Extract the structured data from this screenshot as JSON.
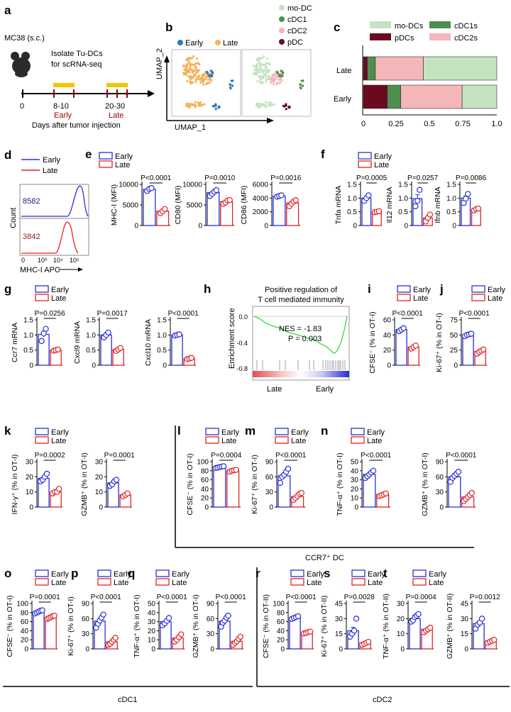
{
  "panels": {
    "a": {
      "letter": "a",
      "model": "MC38 (s.c.)",
      "isolate_line1": "Isolate Tu-DCs",
      "isolate_line2": "for scRNA-seq",
      "tick0": "0",
      "early_range": "8-10",
      "early_label": "Early",
      "late_range": "20-30",
      "late_label": "Late",
      "axis_label": "Days after tumor injection"
    },
    "b": {
      "letter": "b",
      "legend1": [
        "Early",
        "Late"
      ],
      "legend2": [
        "mo-DC",
        "cDC1",
        "cDC2",
        "pDC"
      ],
      "xlabel": "UMAP_1",
      "ylabel": "UMAP_2"
    },
    "c": {
      "letter": "c",
      "legend": [
        "mo-DCs",
        "cDC1s",
        "pDCs",
        "cDC2s"
      ],
      "ticks": [
        "0",
        "0.25",
        "0.5",
        "0.75",
        "1.0"
      ]
    },
    "d": {
      "letter": "d",
      "legend": [
        "Early",
        "Late"
      ],
      "mfi_early": "8582",
      "mfi_late": "3842",
      "ylabel": "Count",
      "xlabel": "MHC-I APC",
      "ticks": [
        "0",
        "10³",
        "10⁴",
        "10⁵"
      ]
    },
    "h": {
      "letter": "h",
      "title1": "Positive regulation of",
      "title2": "T cell mediated  immunity",
      "ylabel": "Enrichment score",
      "nes": "NES = -1.83",
      "p": "P = 0.003",
      "yticks": [
        "0.0",
        "-0.4",
        "-0.8"
      ],
      "x_late": "Late",
      "x_early": "Early"
    },
    "group_labels": {
      "ccr7": "CCR7⁺ DC",
      "cdc1": "cDC1",
      "cdc2": "cDC2"
    }
  },
  "colors": {
    "early": "#2a2fd6",
    "late": "#e02424",
    "modc": "#c5e3c0",
    "cdc1": "#4e8e4e",
    "pdc": "#6b0a1e",
    "cdc2": "#f4b6b8",
    "umap_early": "#2c7bb6",
    "umap_late": "#f5b35c",
    "gsea_line": "#33dd33"
  },
  "chart_data": [
    {
      "panel": "c",
      "type": "bar",
      "orientation": "horizontal-stacked",
      "categories": [
        "Late",
        "Early"
      ],
      "series": [
        {
          "name": "pDCs",
          "values": [
            0.03,
            0.18
          ]
        },
        {
          "name": "cDC1s",
          "values": [
            0.06,
            0.1
          ]
        },
        {
          "name": "cDC2s",
          "values": [
            0.36,
            0.46
          ]
        },
        {
          "name": "mo-DCs",
          "values": [
            0.55,
            0.26
          ]
        }
      ],
      "xlim": [
        0,
        1.0
      ]
    },
    {
      "panel": "e",
      "type": "bar",
      "ylabel": "MHC-I (MFI)",
      "yticks": [
        "0",
        "5000",
        "10000"
      ],
      "ylim": [
        0,
        10000
      ],
      "p": "P<0.0001",
      "early": 8800,
      "late": 3500,
      "early_pts": [
        8400,
        8900,
        9100
      ],
      "late_pts": [
        3000,
        3500,
        4000
      ]
    },
    {
      "panel": "e",
      "type": "bar",
      "ylabel": "CD80 (MFI)",
      "yticks": [
        "0",
        "5000",
        "10000"
      ],
      "ylim": [
        0,
        10000
      ],
      "p": "P=0.0010",
      "early": 8000,
      "late": 5800,
      "early_pts": [
        7200,
        7700,
        8200,
        8600
      ],
      "late_pts": [
        5300,
        5600,
        6100,
        6200
      ]
    },
    {
      "panel": "e",
      "type": "bar",
      "ylabel": "CD86 (MFI)",
      "yticks": [
        "0",
        "2000",
        "4000",
        "6000"
      ],
      "ylim": [
        0,
        6000
      ],
      "p": "P=0.0016",
      "early": 4300,
      "late": 3300,
      "early_pts": [
        4200,
        4300,
        4400
      ],
      "late_pts": [
        2800,
        3200,
        3500,
        3700
      ]
    },
    {
      "panel": "f",
      "type": "bar",
      "ylabel": "Tnfa mRNA",
      "yticks": [
        "0",
        "0.5",
        "1.0",
        "1.5"
      ],
      "ylim": [
        0,
        1.5
      ],
      "p": "P=0.0005",
      "early": 1.0,
      "late": 0.5,
      "early_pts": [
        0.9,
        1.0,
        1.1
      ],
      "late_pts": [
        0.48,
        0.5,
        0.52
      ]
    },
    {
      "panel": "f",
      "type": "bar",
      "ylabel": "Il12 mRNA",
      "yticks": [
        "0",
        "0.5",
        "1.0",
        "1.5"
      ],
      "ylim": [
        0,
        1.5
      ],
      "p": "P=0.0257",
      "early": 0.98,
      "late": 0.28,
      "early_pts": [
        0.7,
        0.9,
        1.3
      ],
      "late_pts": [
        0.15,
        0.28,
        0.4
      ]
    },
    {
      "panel": "f",
      "type": "bar",
      "ylabel": "Ifnb mRNA",
      "yticks": [
        "0",
        "0.5",
        "1.0",
        "1.5"
      ],
      "ylim": [
        0,
        1.5
      ],
      "p": "P=0.0086",
      "early": 1.0,
      "late": 0.58,
      "early_pts": [
        0.82,
        0.98,
        1.15
      ],
      "late_pts": [
        0.55,
        0.6,
        0.62
      ]
    },
    {
      "panel": "g",
      "type": "bar",
      "ylabel": "Ccr7 mRNA",
      "yticks": [
        "0",
        "0.5",
        "1.0",
        "1.5"
      ],
      "ylim": [
        0,
        1.5
      ],
      "p": "P=0.0256",
      "early": 1.02,
      "late": 0.5,
      "early_pts": [
        0.8,
        1.05,
        1.2
      ],
      "late_pts": [
        0.48,
        0.5,
        0.52
      ]
    },
    {
      "panel": "g",
      "type": "bar",
      "ylabel": "Cxcl9 mRNA",
      "yticks": [
        "0",
        "0.5",
        "1.0",
        "1.5"
      ],
      "ylim": [
        0,
        1.5
      ],
      "p": "P=0.0017",
      "early": 1.0,
      "late": 0.52,
      "early_pts": [
        0.92,
        1.0,
        1.08
      ],
      "late_pts": [
        0.47,
        0.52,
        0.57
      ]
    },
    {
      "panel": "g",
      "type": "bar",
      "ylabel": "Cxcl10 mRNA",
      "yticks": [
        "0",
        "0.5",
        "1.0",
        "1.5"
      ],
      "ylim": [
        0,
        1.5
      ],
      "p": "P<0.0001",
      "early": 1.0,
      "late": 0.22,
      "early_pts": [
        0.98,
        1.0,
        1.02
      ],
      "late_pts": [
        0.2,
        0.22,
        0.24
      ]
    },
    {
      "panel": "i",
      "type": "bar",
      "ylabel": "CFSE⁻ (% in OT-I)",
      "yticks": [
        "0",
        "20",
        "40",
        "60"
      ],
      "ylim": [
        0,
        60
      ],
      "p": "P<0.0001",
      "early": 47,
      "late": 24,
      "early_pts": [
        45,
        47,
        49
      ],
      "late_pts": [
        22,
        24,
        26
      ]
    },
    {
      "panel": "j",
      "type": "bar",
      "ylabel": "Ki-67⁺ (% in OT-I)",
      "yticks": [
        "0",
        "25",
        "50",
        "75"
      ],
      "ylim": [
        0,
        75
      ],
      "p": "P<0.0001",
      "early": 50,
      "late": 23,
      "early_pts": [
        48,
        50,
        51,
        52
      ],
      "late_pts": [
        19,
        22,
        24,
        26
      ]
    },
    {
      "panel": "k",
      "type": "bar",
      "ylabel": "IFN-γ⁺ (% in OT-I)",
      "yticks": [
        "0",
        "10",
        "20",
        "30"
      ],
      "ylim": [
        0,
        30
      ],
      "p": "P=0.0002",
      "early": 19,
      "late": 10,
      "early_pts": [
        17,
        18,
        20,
        22
      ],
      "late_pts": [
        9,
        10,
        10,
        12
      ]
    },
    {
      "panel": "k",
      "type": "bar",
      "ylabel": "GZMB⁺ (% in OT-I)",
      "yticks": [
        "0",
        "10",
        "20",
        "30"
      ],
      "ylim": [
        0,
        30
      ],
      "p": "P=0.0001",
      "early": 16,
      "late": 8,
      "early_pts": [
        14,
        15,
        17,
        18
      ],
      "late_pts": [
        7,
        8,
        9
      ]
    },
    {
      "panel": "l",
      "type": "bar",
      "ylabel": "CFSE⁻ (% in OT-I)",
      "yticks": [
        "0",
        "20",
        "40",
        "60",
        "80",
        "100"
      ],
      "ylim": [
        0,
        100
      ],
      "p": "P=0.0004",
      "early": 88,
      "late": 80,
      "early_pts": [
        86,
        87,
        88,
        89,
        90
      ],
      "late_pts": [
        78,
        80,
        81,
        82
      ]
    },
    {
      "panel": "m",
      "type": "bar",
      "ylabel": "Ki-67⁺ (% in OT-I)",
      "yticks": [
        "0",
        "30",
        "60",
        "90"
      ],
      "ylim": [
        0,
        90
      ],
      "p": "P<0.0001",
      "early": 62,
      "late": 21,
      "early_pts": [
        48,
        60,
        64,
        70,
        76
      ],
      "late_pts": [
        14,
        18,
        22,
        26,
        28
      ]
    },
    {
      "panel": "n",
      "type": "bar",
      "ylabel": "TNF-α⁺ (% in OT-I)",
      "yticks": [
        "0",
        "10",
        "20",
        "30",
        "40",
        "50"
      ],
      "ylim": [
        0,
        50
      ],
      "p": "P<0.0001",
      "early": 36,
      "late": 14,
      "early_pts": [
        32,
        34,
        36,
        38,
        40
      ],
      "late_pts": [
        12,
        13,
        14,
        15
      ]
    },
    {
      "panel": "n",
      "type": "bar",
      "ylabel": "GZMB⁺ (% in OT-I)",
      "yticks": [
        "0",
        "30",
        "60",
        "90"
      ],
      "ylim": [
        0,
        90
      ],
      "p": "P<0.0001",
      "early": 60,
      "late": 20,
      "early_pts": [
        50,
        58,
        62,
        66,
        70
      ],
      "late_pts": [
        12,
        16,
        20,
        24,
        28
      ]
    },
    {
      "panel": "o",
      "type": "bar",
      "ylabel": "CFSE⁻ (% in OT-I)",
      "yticks": [
        "0",
        "20",
        "40",
        "60",
        "80",
        "100"
      ],
      "ylim": [
        0,
        100
      ],
      "p": "P=0.0001",
      "early": 81,
      "late": 70,
      "early_pts": [
        78,
        80,
        82,
        84,
        85
      ],
      "late_pts": [
        66,
        68,
        70,
        72,
        73
      ]
    },
    {
      "panel": "p",
      "type": "bar",
      "ylabel": "Ki-67⁺ (% in OT-I)",
      "yticks": [
        "0",
        "30",
        "60",
        "90"
      ],
      "ylim": [
        0,
        90
      ],
      "p": "P<0.0001",
      "early": 55,
      "late": 14,
      "early_pts": [
        42,
        50,
        56,
        62,
        68
      ],
      "late_pts": [
        8,
        10,
        14,
        18,
        22
      ]
    },
    {
      "panel": "q",
      "type": "bar",
      "ylabel": "TNF-α⁺ (% in OT-I)",
      "yticks": [
        "0",
        "10",
        "20",
        "30",
        "40",
        "50"
      ],
      "ylim": [
        0,
        50
      ],
      "p": "P<0.0001",
      "early": 30,
      "late": 12,
      "early_pts": [
        26,
        28,
        31,
        34
      ],
      "late_pts": [
        8,
        10,
        13,
        16
      ]
    },
    {
      "panel": "q",
      "type": "bar",
      "ylabel": "GZMB⁺ (% in OT-I)",
      "yticks": [
        "0",
        "30",
        "60",
        "90"
      ],
      "ylim": [
        0,
        90
      ],
      "p": "P<0.0001",
      "early": 55,
      "late": 15,
      "early_pts": [
        44,
        52,
        56,
        62,
        66
      ],
      "late_pts": [
        8,
        12,
        15,
        20,
        24
      ]
    },
    {
      "panel": "r",
      "type": "bar",
      "ylabel": "CFSE⁻ (% in OT-II)",
      "yticks": [
        "0",
        "20",
        "40",
        "60",
        "80",
        "100"
      ],
      "ylim": [
        0,
        100
      ],
      "p": "P<0.0001",
      "early": 69,
      "late": 36,
      "early_pts": [
        66,
        68,
        70,
        72
      ],
      "late_pts": [
        34,
        35,
        37,
        38
      ]
    },
    {
      "panel": "s",
      "type": "bar",
      "ylabel": "Ki-67⁺ (% in OT-II)",
      "yticks": [
        "0",
        "15",
        "30",
        "45"
      ],
      "ylim": [
        0,
        45
      ],
      "p": "P=0.0028",
      "early": 18,
      "late": 6,
      "early_pts": [
        12,
        15,
        18,
        30
      ],
      "late_pts": [
        4,
        5,
        6,
        7
      ]
    },
    {
      "panel": "t",
      "type": "bar",
      "ylabel": "TNF-α⁺ (% in OT-II)",
      "yticks": [
        "0",
        "10",
        "20",
        "30"
      ],
      "ylim": [
        0,
        30
      ],
      "p": "P=0.0004",
      "early": 20,
      "late": 13,
      "early_pts": [
        18,
        19,
        21,
        22,
        23
      ],
      "late_pts": [
        11,
        12,
        13,
        14
      ]
    },
    {
      "panel": "t",
      "type": "bar",
      "ylabel": "GZMB⁺ (% in OT-II)",
      "yticks": [
        "0",
        "15",
        "30",
        "45"
      ],
      "ylim": [
        0,
        45
      ],
      "p": "P=0.0012",
      "early": 25,
      "late": 8,
      "early_pts": [
        20,
        24,
        26,
        30
      ],
      "late_pts": [
        6,
        7,
        8,
        9
      ]
    }
  ],
  "legend_labels": [
    "Early",
    "Late"
  ],
  "letters": {
    "e": "e",
    "f": "f",
    "g": "g",
    "i": "i",
    "j": "j",
    "k": "k",
    "l": "l",
    "m": "m",
    "n": "n",
    "o": "o",
    "p": "p",
    "q": "q",
    "r": "r",
    "s": "s",
    "t": "t"
  }
}
